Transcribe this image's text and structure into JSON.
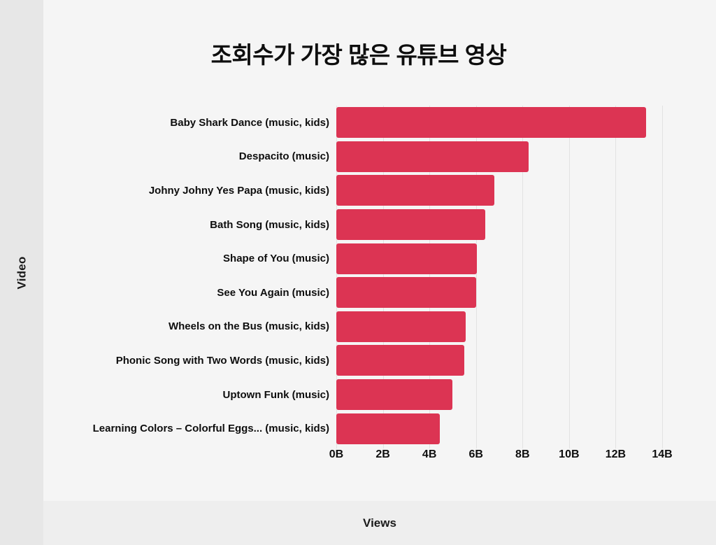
{
  "title": "조회수가 가장 많은 유튜브 영상",
  "axes": {
    "y_axis_title": "Video",
    "x_axis_title": "Views"
  },
  "chart_data": {
    "type": "bar",
    "orientation": "horizontal",
    "title": "조회수가 가장 많은 유튜브 영상",
    "categories": [
      "Baby Shark Dance (music, kids)",
      "Despacito (music)",
      "Johny Johny Yes Papa (music, kids)",
      "Bath Song (music, kids)",
      "Shape of You (music)",
      "See You Again (music)",
      "Wheels on the Bus (music, kids)",
      "Phonic Song with Two Words (music, kids)",
      "Uptown Funk (music)",
      "Learning Colors – Colorful Eggs... (music, kids)"
    ],
    "values": [
      13.3,
      8.25,
      6.8,
      6.4,
      6.05,
      6.0,
      5.55,
      5.5,
      5.0,
      4.45
    ],
    "unit": "billions of views",
    "xlabel": "Views",
    "ylabel": "Video",
    "xlim": [
      0,
      14
    ],
    "xticks": [
      "0B",
      "2B",
      "4B",
      "6B",
      "8B",
      "10B",
      "12B",
      "14B"
    ],
    "grid": true,
    "legend": false,
    "bar_color": "#dc3453"
  },
  "colors": {
    "bar": "#dc3453",
    "panel_bg": "#f5f5f5",
    "side_strip_bg": "#e7e7e7",
    "bottom_band_bg": "#eeeeee",
    "gridline": "#e2e2e2",
    "text": "#111111"
  }
}
